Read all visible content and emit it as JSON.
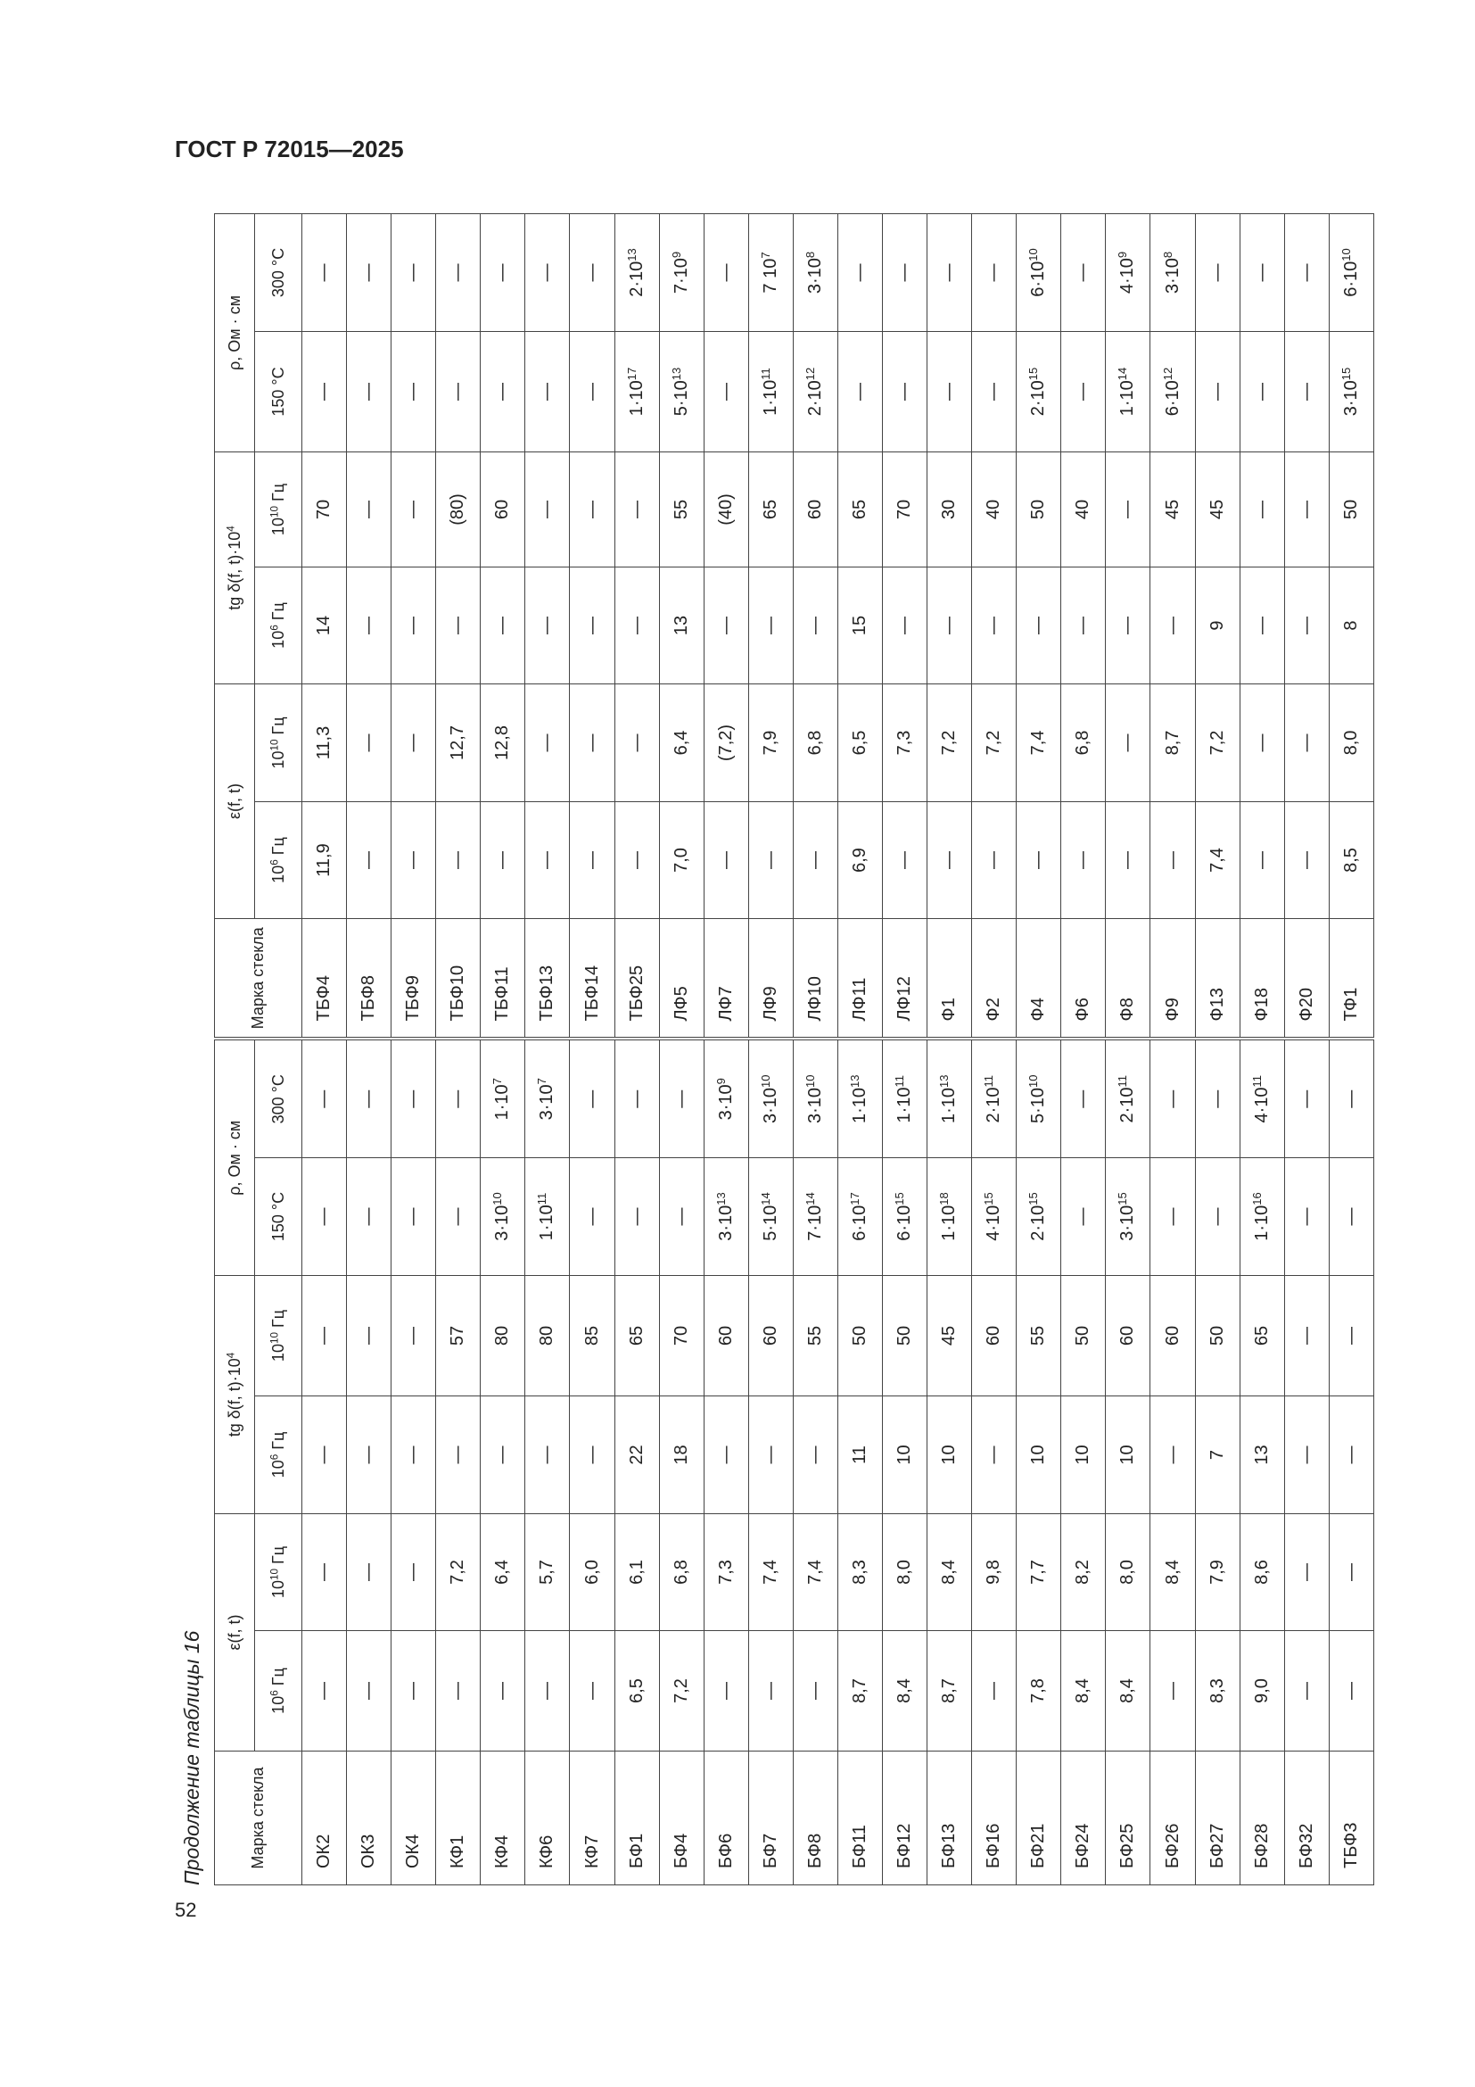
{
  "header": {
    "title": "ГОСТ Р 72015—2025"
  },
  "caption": "Продолжение таблицы 16",
  "page_number": "52",
  "table": {
    "groups": [
      {
        "grade": "Марка стекла",
        "eps": "ε(f, t)",
        "tg": {
          "base": "tg δ(f, t)·10",
          "sup": "4"
        },
        "rho": "ρ, Ом · см",
        "sub": [
          {
            "base": "10",
            "sup": "6",
            "tail": " Гц"
          },
          {
            "base": "10",
            "sup": "10",
            "tail": " Гц"
          },
          {
            "base": "10",
            "sup": "6",
            "tail": " Гц"
          },
          {
            "base": "10",
            "sup": "10",
            "tail": " Гц"
          },
          "150 °С",
          "300 °С"
        ]
      },
      {
        "grade": "Марка стекла",
        "eps": "ε(f, t)",
        "tg": {
          "base": "tg δ(f, t)·10",
          "sup": "4"
        },
        "rho": "ρ, Ом · см",
        "sub": [
          {
            "base": "10",
            "sup": "6",
            "tail": " Гц"
          },
          {
            "base": "10",
            "sup": "10",
            "tail": " Гц"
          },
          {
            "base": "10",
            "sup": "6",
            "tail": " Гц"
          },
          {
            "base": "10",
            "sup": "10",
            "tail": " Гц"
          },
          "150 °С",
          "300 °С"
        ]
      }
    ],
    "rows": [
      [
        "ОК2",
        "—",
        "—",
        "—",
        "—",
        "—",
        "—",
        "ТБФ4",
        "11,9",
        "11,3",
        "14",
        "70",
        "—",
        "—"
      ],
      [
        "ОК3",
        "—",
        "—",
        "—",
        "—",
        "—",
        "—",
        "ТБФ8",
        "—",
        "—",
        "—",
        "—",
        "—",
        "—"
      ],
      [
        "ОК4",
        "—",
        "—",
        "—",
        "—",
        "—",
        "—",
        "ТБФ9",
        "—",
        "—",
        "—",
        "—",
        "—",
        "—"
      ],
      [
        "КФ1",
        "—",
        "7,2",
        "—",
        "57",
        "—",
        "—",
        "ТБФ10",
        "—",
        "12,7",
        "—",
        "(80)",
        "—",
        "—"
      ],
      [
        "КФ4",
        "—",
        "6,4",
        "—",
        "80",
        {
          "base": "3·10",
          "sup": "10"
        },
        {
          "base": "1·10",
          "sup": "7"
        },
        "ТБФ11",
        "—",
        "12,8",
        "—",
        "60",
        "—",
        "—"
      ],
      [
        "КФ6",
        "—",
        "5,7",
        "—",
        "80",
        {
          "base": "1·10",
          "sup": "11"
        },
        {
          "base": "3·10",
          "sup": "7"
        },
        "ТБФ13",
        "—",
        "—",
        "—",
        "—",
        "—",
        "—"
      ],
      [
        "КФ7",
        "—",
        "6,0",
        "—",
        "85",
        "—",
        "—",
        "ТБФ14",
        "—",
        "—",
        "—",
        "—",
        "—",
        "—"
      ],
      [
        "БФ1",
        "6,5",
        "6,1",
        "22",
        "65",
        "—",
        "—",
        "ТБФ25",
        "—",
        "—",
        "—",
        "—",
        {
          "base": "1·10",
          "sup": "17"
        },
        {
          "base": "2·10",
          "sup": "13"
        }
      ],
      [
        "БФ4",
        "7,2",
        "6,8",
        "18",
        "70",
        "—",
        "—",
        "ЛФ5",
        "7,0",
        "6,4",
        "13",
        "55",
        {
          "base": "5·10",
          "sup": "13"
        },
        {
          "base": "7·10",
          "sup": "9"
        }
      ],
      [
        "БФ6",
        "—",
        "7,3",
        "—",
        "60",
        {
          "base": "3·10",
          "sup": "13"
        },
        {
          "base": "3·10",
          "sup": "9"
        },
        "ЛФ7",
        "—",
        "(7,2)",
        "—",
        "(40)",
        "—",
        "—"
      ],
      [
        "БФ7",
        "—",
        "7,4",
        "—",
        "60",
        {
          "base": "5·10",
          "sup": "14"
        },
        {
          "base": "3·10",
          "sup": "10"
        },
        "ЛФ9",
        "—",
        "7,9",
        "—",
        "65",
        {
          "base": "1·10",
          "sup": "11"
        },
        {
          "base": "7 10",
          "sup": "7"
        }
      ],
      [
        "БФ8",
        "—",
        "7,4",
        "—",
        "55",
        {
          "base": "7·10",
          "sup": "14"
        },
        {
          "base": "3·10",
          "sup": "10"
        },
        "ЛФ10",
        "—",
        "6,8",
        "—",
        "60",
        {
          "base": "2·10",
          "sup": "12"
        },
        {
          "base": "3·10",
          "sup": "8"
        }
      ],
      [
        "БФ11",
        "8,7",
        "8,3",
        "11",
        "50",
        {
          "base": "6·10",
          "sup": "17"
        },
        {
          "base": "1·10",
          "sup": "13"
        },
        "ЛФ11",
        "6,9",
        "6,5",
        "15",
        "65",
        "—",
        "—"
      ],
      [
        "БФ12",
        "8,4",
        "8,0",
        "10",
        "50",
        {
          "base": "6·10",
          "sup": "15"
        },
        {
          "base": "1·10",
          "sup": "11"
        },
        "ЛФ12",
        "—",
        "7,3",
        "—",
        "70",
        "—",
        "—"
      ],
      [
        "БФ13",
        "8,7",
        "8,4",
        "10",
        "45",
        {
          "base": "1·10",
          "sup": "18"
        },
        {
          "base": "1·10",
          "sup": "13"
        },
        "Ф1",
        "—",
        "7,2",
        "—",
        "30",
        "—",
        "—"
      ],
      [
        "БФ16",
        "—",
        "9,8",
        "—",
        "60",
        {
          "base": "4·10",
          "sup": "15"
        },
        {
          "base": "2·10",
          "sup": "11"
        },
        "Ф2",
        "—",
        "7,2",
        "—",
        "40",
        "—",
        "—"
      ],
      [
        "БФ21",
        "7,8",
        "7,7",
        "10",
        "55",
        {
          "base": "2·10",
          "sup": "15"
        },
        {
          "base": "5·10",
          "sup": "10"
        },
        "Ф4",
        "—",
        "7,4",
        "—",
        "50",
        {
          "base": "2·10",
          "sup": "15"
        },
        {
          "base": "6·10",
          "sup": "10"
        }
      ],
      [
        "БФ24",
        "8,4",
        "8,2",
        "10",
        "50",
        "—",
        "—",
        "Ф6",
        "—",
        "6,8",
        "—",
        "40",
        "—",
        "—"
      ],
      [
        "БФ25",
        "8,4",
        "8,0",
        "10",
        "60",
        {
          "base": "3·10",
          "sup": "15"
        },
        {
          "base": "2·10",
          "sup": "11"
        },
        "Ф8",
        "—",
        "—",
        "—",
        "—",
        {
          "base": "1·10",
          "sup": "14"
        },
        {
          "base": "4·10",
          "sup": "9"
        }
      ],
      [
        "БФ26",
        "—",
        "8,4",
        "—",
        "60",
        "—",
        "—",
        "Ф9",
        "—",
        "8,7",
        "—",
        "45",
        {
          "base": "6·10",
          "sup": "12"
        },
        {
          "base": "3·10",
          "sup": "8"
        }
      ],
      [
        "БФ27",
        "8,3",
        "7,9",
        "7",
        "50",
        "—",
        "—",
        "Ф13",
        "7,4",
        "7,2",
        "9",
        "45",
        "—",
        "—"
      ],
      [
        "БФ28",
        "9,0",
        "8,6",
        "13",
        "65",
        {
          "base": "1·10",
          "sup": "16"
        },
        {
          "base": "4·10",
          "sup": "11"
        },
        "Ф18",
        "—",
        "—",
        "—",
        "—",
        "—",
        "—"
      ],
      [
        "БФ32",
        "—",
        "—",
        "—",
        "—",
        "—",
        "—",
        "Ф20",
        "—",
        "—",
        "—",
        "—",
        "—",
        "—"
      ],
      [
        "ТБФ3",
        "—",
        "—",
        "—",
        "—",
        "—",
        "—",
        "ТФ1",
        "8,5",
        "8,0",
        "8",
        "50",
        {
          "base": "3·10",
          "sup": "15"
        },
        {
          "base": "6·10",
          "sup": "10"
        }
      ]
    ]
  }
}
